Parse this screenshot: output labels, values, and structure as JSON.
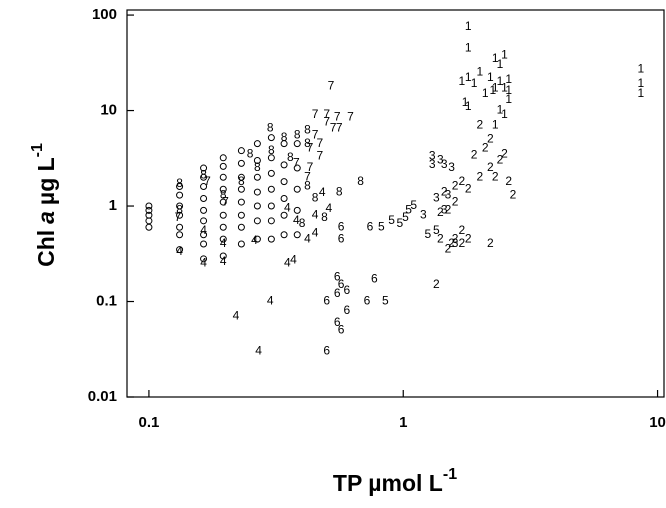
{
  "chart_data": {
    "type": "scatter",
    "xlabel": [
      "TP µmol L",
      "-1"
    ],
    "ylabel": [
      "Chl",
      "a",
      "µg L",
      "-1"
    ],
    "xscale": "log",
    "yscale": "log",
    "xlim": [
      0.082,
      10.6
    ],
    "ylim": [
      0.01,
      113
    ],
    "xticks": [
      0.1,
      1,
      10
    ],
    "yticks": [
      0.01,
      0.1,
      1,
      10,
      100
    ],
    "series": [
      {
        "marker": "circle",
        "color": "#000000",
        "x": [
          0.1,
          0.1,
          0.1,
          0.1,
          0.1,
          0.132,
          0.132,
          0.132,
          0.132,
          0.132,
          0.132,
          0.132,
          0.164,
          0.164,
          0.164,
          0.164,
          0.164,
          0.164,
          0.164,
          0.164,
          0.164,
          0.196,
          0.196,
          0.196,
          0.196,
          0.196,
          0.196,
          0.196,
          0.196,
          0.196,
          0.231,
          0.231,
          0.231,
          0.231,
          0.231,
          0.231,
          0.231,
          0.231,
          0.267,
          0.267,
          0.267,
          0.267,
          0.267,
          0.267,
          0.267,
          0.303,
          0.303,
          0.303,
          0.303,
          0.303,
          0.303,
          0.303,
          0.34,
          0.34,
          0.34,
          0.34,
          0.34,
          0.34,
          0.383,
          0.383,
          0.383,
          0.383,
          0.383
        ],
        "values": [
          0.6,
          0.7,
          0.8,
          0.9,
          1.0,
          0.35,
          0.5,
          0.6,
          0.8,
          1.0,
          1.3,
          1.6,
          0.28,
          0.4,
          0.5,
          0.7,
          0.9,
          1.2,
          1.6,
          2.0,
          2.5,
          0.3,
          0.45,
          0.6,
          0.8,
          1.1,
          1.5,
          2.0,
          2.6,
          3.2,
          0.4,
          0.6,
          0.8,
          1.1,
          1.5,
          2.0,
          2.8,
          3.8,
          0.45,
          0.7,
          1.0,
          1.4,
          2.0,
          3.0,
          4.5,
          0.45,
          0.7,
          1.0,
          1.5,
          2.2,
          3.2,
          5.2,
          0.5,
          0.8,
          1.2,
          1.8,
          2.7,
          4.5,
          0.5,
          0.9,
          1.5,
          2.5,
          4.5
        ]
      },
      {
        "name": "8",
        "color": "#000000",
        "x": [
          0.132,
          0.132,
          0.164,
          0.196,
          0.231,
          0.267,
          0.303,
          0.34,
          0.383,
          0.42,
          0.42,
          0.36,
          0.3,
          0.25,
          0.45,
          0.49,
          0.4,
          0.68,
          0.56,
          0.42
        ],
        "values": [
          1.7,
          0.9,
          2.1,
          1.3,
          1.8,
          2.5,
          3.8,
          5.2,
          5.5,
          6.2,
          4.5,
          3.2,
          6.5,
          3.5,
          1.2,
          0.75,
          0.65,
          1.8,
          1.4,
          1.6
        ]
      },
      {
        "name": "7",
        "color": "#000000",
        "x": [
          0.52,
          0.45,
          0.5,
          0.55,
          0.62,
          0.5,
          0.53,
          0.56,
          0.45,
          0.47,
          0.43,
          0.47,
          0.43,
          0.17,
          0.13,
          0.2,
          0.38,
          0.42
        ],
        "values": [
          18,
          9,
          9,
          8.5,
          8.5,
          7.5,
          6.5,
          6.5,
          5.5,
          4.5,
          4,
          3.3,
          2.5,
          1.8,
          0.75,
          1.1,
          2.8,
          2
        ]
      },
      {
        "name": "4",
        "color": "#000000",
        "x": [
          0.196,
          0.196,
          0.164,
          0.132,
          0.26,
          0.42,
          0.45,
          0.51,
          0.48,
          0.35,
          0.45,
          0.27,
          0.22,
          0.3,
          0.35,
          0.37,
          0.38,
          0.164
        ],
        "values": [
          0.26,
          0.4,
          0.25,
          0.33,
          0.43,
          0.45,
          0.52,
          0.93,
          1.37,
          0.95,
          0.8,
          0.03,
          0.07,
          0.1,
          0.25,
          0.27,
          0.7,
          0.55
        ]
      },
      {
        "name": "6",
        "color": "#000000",
        "x": [
          0.5,
          0.55,
          0.57,
          0.6,
          0.72,
          0.57,
          0.57,
          0.74,
          0.57,
          0.77,
          0.55,
          0.55,
          0.6,
          0.5
        ],
        "values": [
          0.1,
          0.06,
          0.05,
          0.08,
          0.1,
          0.15,
          0.6,
          0.6,
          0.45,
          0.17,
          0.18,
          0.12,
          0.13,
          0.03
        ]
      },
      {
        "name": "5",
        "color": "#000000",
        "x": [
          0.85,
          0.82,
          0.9,
          0.97,
          1.05,
          1.1,
          1.02,
          1.25,
          1.35
        ],
        "values": [
          0.1,
          0.6,
          0.7,
          0.65,
          0.9,
          1.0,
          0.75,
          0.5,
          0.55
        ]
      },
      {
        "name": "3",
        "color": "#000000",
        "x": [
          1.3,
          1.4,
          1.45,
          1.3,
          1.5,
          1.35,
          1.6,
          1.55,
          1.2,
          1.45
        ],
        "values": [
          3.3,
          3.0,
          2.7,
          2.7,
          1.3,
          1.2,
          0.4,
          2.5,
          0.8,
          0.9
        ]
      },
      {
        "name": "2",
        "color": "#000000",
        "x": [
          1.35,
          1.5,
          1.6,
          1.55,
          1.7,
          1.8,
          1.4,
          2.2,
          1.5,
          1.6,
          1.8,
          2.0,
          2.2,
          2.4,
          2.5,
          1.7,
          1.9,
          2.1,
          1.6,
          2.3,
          2.6,
          2.0,
          2.2,
          1.45,
          1.7,
          2.7,
          1.4
        ],
        "values": [
          0.15,
          0.35,
          0.45,
          0.4,
          0.4,
          0.45,
          0.45,
          0.4,
          0.9,
          1.1,
          1.5,
          2.0,
          2.5,
          3.0,
          3.5,
          1.8,
          3.4,
          4.0,
          1.6,
          2.0,
          1.8,
          7.0,
          5.0,
          1.4,
          0.55,
          1.3,
          0.85
        ]
      },
      {
        "name": "1",
        "color": "#000000",
        "x": [
          1.8,
          1.8,
          1.8,
          1.7,
          1.9,
          2.2,
          2.4,
          2.3,
          2.5,
          2.4,
          2.5,
          2.6,
          2.3,
          2.1,
          2.6,
          1.75,
          1.8,
          2.4,
          2.5,
          2.3,
          8.6,
          8.6,
          8.6,
          2.6,
          2.0,
          2.25
        ],
        "values": [
          75,
          45,
          22,
          20,
          19,
          22,
          30,
          35,
          38,
          20,
          17,
          16,
          17,
          15,
          13,
          12,
          11,
          10,
          9,
          7,
          27,
          19,
          15,
          21,
          25,
          16
        ]
      }
    ]
  }
}
